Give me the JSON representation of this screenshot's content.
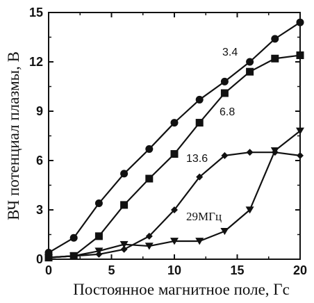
{
  "chart_data": {
    "type": "line",
    "xlabel": "Постоянное магнитное поле,  Гс",
    "ylabel": "ВЧ потенциал плазмы, В",
    "xlim": [
      0,
      20
    ],
    "ylim": [
      0,
      15
    ],
    "xticks": [
      "0",
      "5",
      "10",
      "15",
      "20"
    ],
    "yticks": [
      "0",
      "3",
      "6",
      "9",
      "12",
      "15"
    ],
    "grid": false,
    "series": [
      {
        "name": "3.4",
        "marker": "circle",
        "x": [
          0,
          2,
          4,
          6,
          8,
          10,
          12,
          14,
          16,
          18,
          20
        ],
        "y": [
          0.4,
          1.3,
          3.4,
          5.2,
          6.7,
          8.3,
          9.7,
          10.8,
          12.0,
          13.4,
          14.4
        ]
      },
      {
        "name": "6.8",
        "marker": "square",
        "x": [
          0,
          2,
          4,
          6,
          8,
          10,
          12,
          14,
          16,
          18,
          20
        ],
        "y": [
          0.1,
          0.2,
          1.4,
          3.3,
          4.9,
          6.4,
          8.3,
          10.1,
          11.4,
          12.2,
          12.4
        ]
      },
      {
        "name": "13.6",
        "marker": "diamond",
        "x": [
          0,
          2,
          4,
          6,
          8,
          10,
          12,
          14,
          16,
          18,
          20
        ],
        "y": [
          0.1,
          0.2,
          0.3,
          0.6,
          1.4,
          3.0,
          5.0,
          6.3,
          6.5,
          6.5,
          6.3
        ]
      },
      {
        "name": "29МГц",
        "marker": "triangle-down",
        "x": [
          0,
          2,
          4,
          6,
          8,
          10,
          12,
          14,
          16,
          18,
          20
        ],
        "y": [
          0.1,
          0.2,
          0.5,
          0.9,
          0.8,
          1.1,
          1.1,
          1.7,
          3.0,
          6.6,
          7.8
        ]
      }
    ]
  }
}
